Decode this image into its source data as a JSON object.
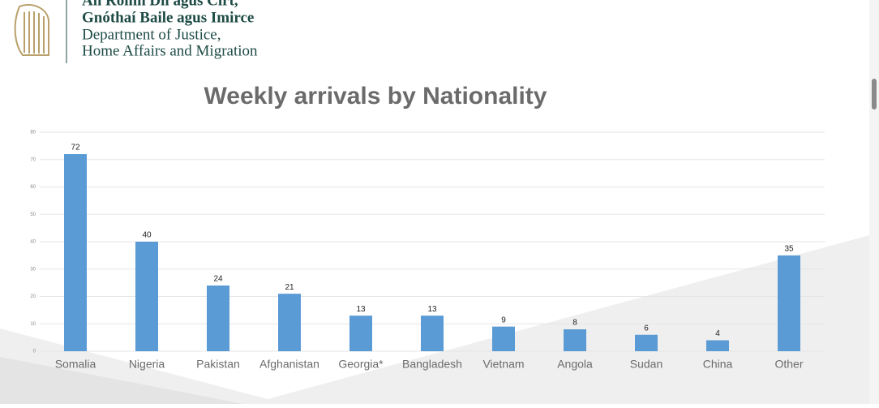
{
  "header": {
    "lines": [
      "An Roinn Dlí agus Cirt,",
      "Gnóthaí Baile agus Imirce",
      "Department of Justice,",
      "Home Affairs and Migration"
    ]
  },
  "chart_data": {
    "type": "bar",
    "title": "Weekly arrivals by Nationality",
    "categories": [
      "Somalia",
      "Nigeria",
      "Pakistan",
      "Afghanistan",
      "Georgia*",
      "Bangladesh",
      "Vietnam",
      "Angola",
      "Sudan",
      "China",
      "Other"
    ],
    "values": [
      72,
      40,
      24,
      21,
      13,
      13,
      9,
      8,
      6,
      4,
      35
    ],
    "color": "#5b9bd5",
    "ylim": [
      0,
      80
    ],
    "yticks": [
      0,
      10,
      20,
      30,
      40,
      50,
      60,
      70,
      80
    ],
    "grid": true
  }
}
